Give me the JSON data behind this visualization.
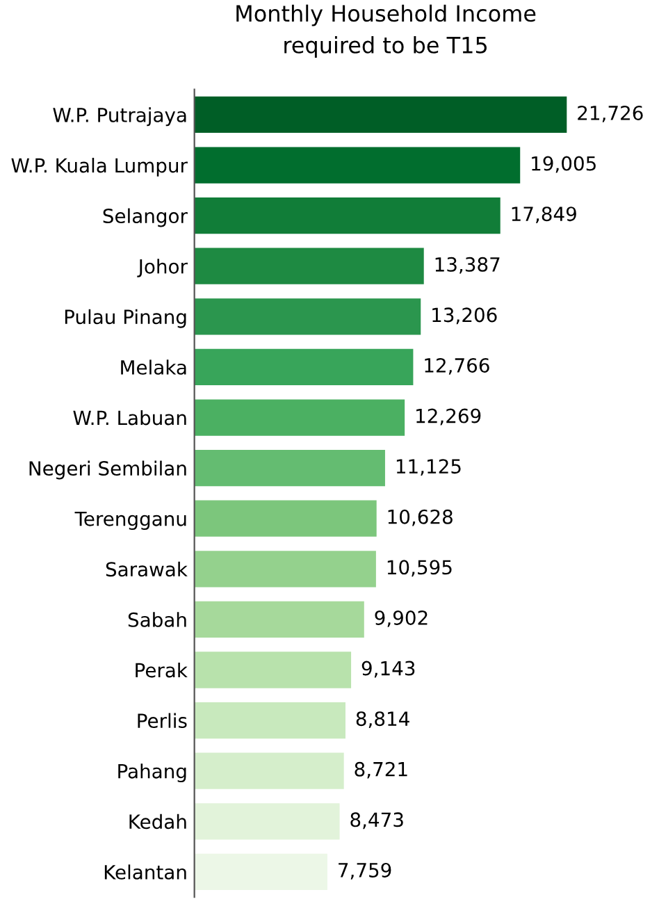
{
  "chart_data": {
    "type": "bar",
    "orientation": "horizontal",
    "title": "Monthly Household Income\nrequired to be T15",
    "categories": [
      "W.P. Putrajaya",
      "W.P. Kuala Lumpur",
      "Selangor",
      "Johor",
      "Pulau Pinang",
      "Melaka",
      "W.P. Labuan",
      "Negeri Sembilan",
      "Terengganu",
      "Sarawak",
      "Sabah",
      "Perak",
      "Perlis",
      "Pahang",
      "Kedah",
      "Kelantan"
    ],
    "values": [
      21726,
      19005,
      17849,
      13387,
      13206,
      12766,
      12269,
      11125,
      10628,
      10595,
      9902,
      9143,
      8814,
      8721,
      8473,
      7759
    ],
    "value_labels": [
      "21,726",
      "19,005",
      "17,849",
      "13,387",
      "13,206",
      "12,766",
      "12,269",
      "11,125",
      "10,628",
      "10,595",
      "9,902",
      "9,143",
      "8,814",
      "8,721",
      "8,473",
      "7,759"
    ],
    "colors": [
      "#005e26",
      "#016e2e",
      "#117d38",
      "#1e8a42",
      "#2b964e",
      "#38a55a",
      "#4bb062",
      "#64bc71",
      "#7cc67c",
      "#94d18d",
      "#a6d99b",
      "#b8e2ac",
      "#c8e9bd",
      "#d5eecb",
      "#e2f3da",
      "#ecf7e7"
    ],
    "grid": false
  }
}
